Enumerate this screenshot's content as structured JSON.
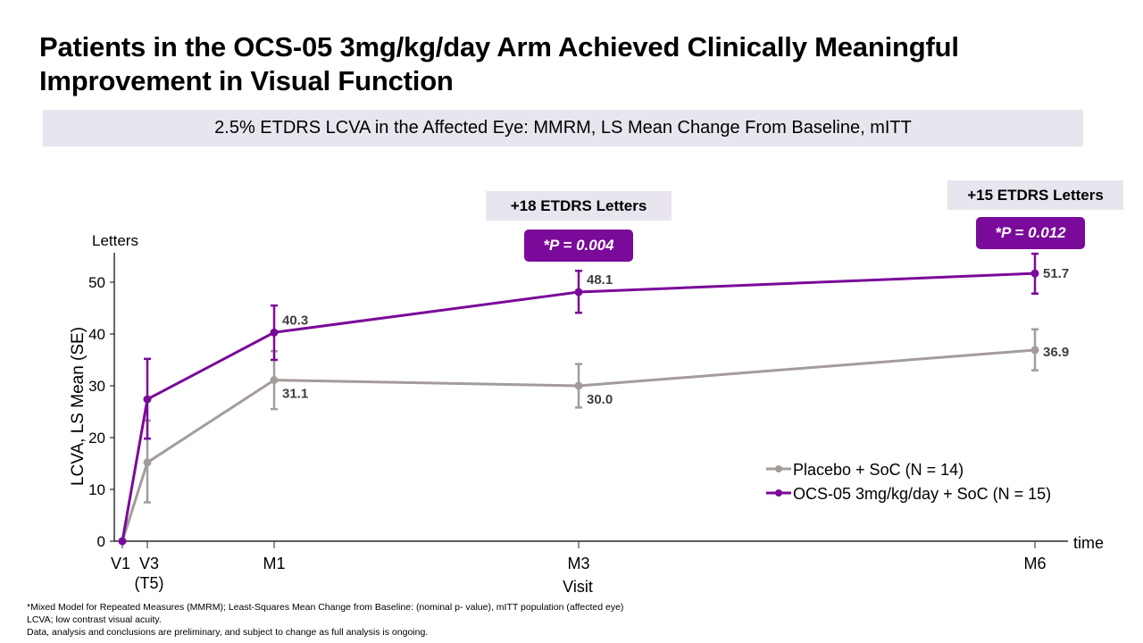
{
  "title_line1": "Patients in the OCS-05 3mg/kg/day Arm Achieved Clinically Meaningful",
  "title_line2": "Improvement in Visual Function",
  "subtitle": "2.5% ETDRS LCVA in the Affected Eye: MMRM, LS Mean Change From Baseline, mITT",
  "annotations": [
    {
      "label": "+18 ETDRS Letters",
      "pvalue": "*P = 0.004",
      "at": "M3"
    },
    {
      "label": "+15 ETDRS Letters",
      "pvalue": "*P = 0.012",
      "at": "M6"
    }
  ],
  "footnotes": [
    "*Mixed Model for Repeated Measures (MMRM); Least-Squares Mean Change from Baseline: (nominal p- value), mITT population (affected eye)",
    "LCVA; low contrast visual acuity.",
    "Data, analysis and conclusions are preliminary, and subject to change as full analysis is ongoing."
  ],
  "chart_data": {
    "type": "line",
    "title": "2.5% ETDRS LCVA in the Affected Eye: MMRM, LS Mean Change From Baseline, mITT",
    "ylabel": "LCVA, LS Mean (SE)",
    "yunit_label": "Letters",
    "xlabel": "Visit",
    "x_axis_end_label": "time",
    "ylim": [
      0,
      55
    ],
    "yticks": [
      0,
      10,
      20,
      30,
      40,
      50
    ],
    "x_categories": [
      {
        "key": "V1",
        "label": "V1",
        "sublabel": "",
        "t": 0
      },
      {
        "key": "V3",
        "label": "V3",
        "sublabel": "(T5)",
        "t": 0.5
      },
      {
        "key": "M1",
        "label": "M1",
        "sublabel": "",
        "t": 3
      },
      {
        "key": "M3",
        "label": "M3",
        "sublabel": "",
        "t": 9
      },
      {
        "key": "M6",
        "label": "M6",
        "sublabel": "",
        "t": 18
      }
    ],
    "grid": false,
    "legend_position": "bottom-right",
    "series": [
      {
        "name": "Placebo + SoC (N = 14)",
        "color": "#a39c9a",
        "values": [
          0,
          15.2,
          31.1,
          30.0,
          36.9
        ],
        "se_low": [
          0,
          7.5,
          25.5,
          25.8,
          33.0
        ],
        "se_high": [
          0,
          23.3,
          36.7,
          34.2,
          40.9
        ],
        "data_labels": [
          "",
          "",
          "31.1",
          "30.0",
          "36.9"
        ]
      },
      {
        "name": "OCS-05 3mg/kg/day + SoC (N = 15)",
        "color": "#7a0a99",
        "values": [
          0,
          27.4,
          40.3,
          48.1,
          51.7
        ],
        "se_low": [
          0,
          19.8,
          35.0,
          44.1,
          47.8
        ],
        "se_high": [
          0,
          35.2,
          45.5,
          52.2,
          55.5
        ],
        "data_labels": [
          "",
          "",
          "40.3",
          "48.1",
          "51.7"
        ]
      }
    ]
  }
}
